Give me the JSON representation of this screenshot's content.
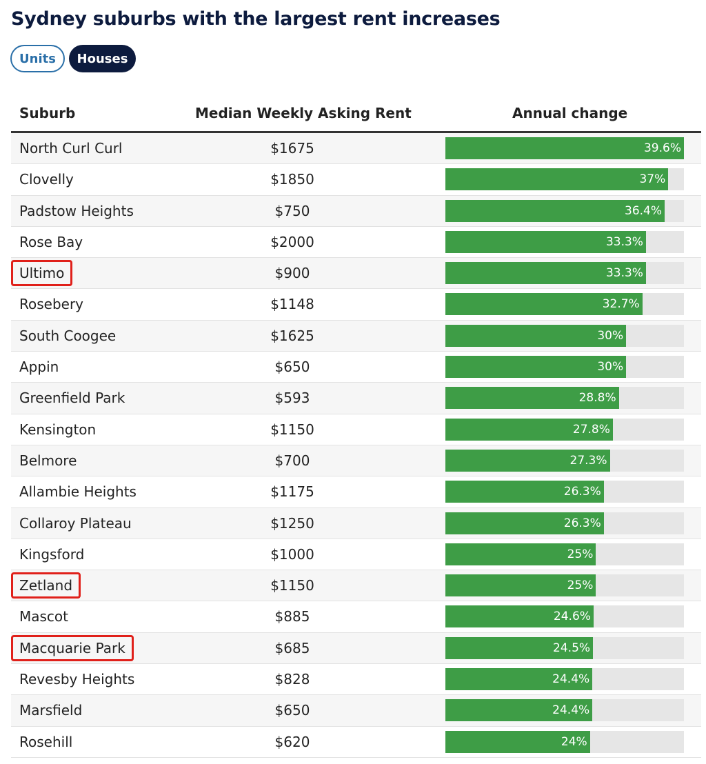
{
  "title": "Sydney suburbs with the largest rent increases",
  "toggles": {
    "units": "Units",
    "houses": "Houses",
    "selected": "Houses"
  },
  "colors": {
    "bar": "#3e9d46",
    "track": "#e6e6e6",
    "highlight": "#e0201a",
    "title": "#0d1b3e"
  },
  "chart_data": {
    "type": "table",
    "columns": [
      "Suburb",
      "Median Weekly Asking Rent",
      "Annual change"
    ],
    "max_change": 39.6,
    "rows": [
      {
        "suburb": "North Curl Curl",
        "rent": "$1675",
        "change": 39.6,
        "change_label": "39.6%",
        "highlighted": false
      },
      {
        "suburb": "Clovelly",
        "rent": "$1850",
        "change": 37,
        "change_label": "37%",
        "highlighted": false
      },
      {
        "suburb": "Padstow Heights",
        "rent": "$750",
        "change": 36.4,
        "change_label": "36.4%",
        "highlighted": false
      },
      {
        "suburb": "Rose Bay",
        "rent": "$2000",
        "change": 33.3,
        "change_label": "33.3%",
        "highlighted": false
      },
      {
        "suburb": "Ultimo",
        "rent": "$900",
        "change": 33.3,
        "change_label": "33.3%",
        "highlighted": true
      },
      {
        "suburb": "Rosebery",
        "rent": "$1148",
        "change": 32.7,
        "change_label": "32.7%",
        "highlighted": false
      },
      {
        "suburb": "South Coogee",
        "rent": "$1625",
        "change": 30,
        "change_label": "30%",
        "highlighted": false
      },
      {
        "suburb": "Appin",
        "rent": "$650",
        "change": 30,
        "change_label": "30%",
        "highlighted": false
      },
      {
        "suburb": "Greenfield Park",
        "rent": "$593",
        "change": 28.8,
        "change_label": "28.8%",
        "highlighted": false
      },
      {
        "suburb": "Kensington",
        "rent": "$1150",
        "change": 27.8,
        "change_label": "27.8%",
        "highlighted": false
      },
      {
        "suburb": "Belmore",
        "rent": "$700",
        "change": 27.3,
        "change_label": "27.3%",
        "highlighted": false
      },
      {
        "suburb": "Allambie Heights",
        "rent": "$1175",
        "change": 26.3,
        "change_label": "26.3%",
        "highlighted": false
      },
      {
        "suburb": "Collaroy Plateau",
        "rent": "$1250",
        "change": 26.3,
        "change_label": "26.3%",
        "highlighted": false
      },
      {
        "suburb": "Kingsford",
        "rent": "$1000",
        "change": 25,
        "change_label": "25%",
        "highlighted": false
      },
      {
        "suburb": "Zetland",
        "rent": "$1150",
        "change": 25,
        "change_label": "25%",
        "highlighted": true
      },
      {
        "suburb": "Mascot",
        "rent": "$885",
        "change": 24.6,
        "change_label": "24.6%",
        "highlighted": false
      },
      {
        "suburb": "Macquarie Park",
        "rent": "$685",
        "change": 24.5,
        "change_label": "24.5%",
        "highlighted": true
      },
      {
        "suburb": "Revesby Heights",
        "rent": "$828",
        "change": 24.4,
        "change_label": "24.4%",
        "highlighted": false
      },
      {
        "suburb": "Marsfield",
        "rent": "$650",
        "change": 24.4,
        "change_label": "24.4%",
        "highlighted": false
      },
      {
        "suburb": "Rosehill",
        "rent": "$620",
        "change": 24,
        "change_label": "24%",
        "highlighted": false
      }
    ]
  }
}
